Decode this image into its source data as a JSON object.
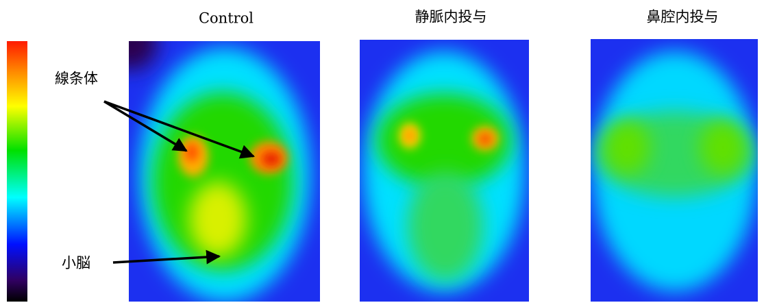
{
  "panels": {
    "titles": [
      "Control",
      "静脈内投与",
      "鼻腔内投与"
    ]
  },
  "annotations": {
    "striatum": "線条体",
    "cerebellum": "小脳"
  }
}
